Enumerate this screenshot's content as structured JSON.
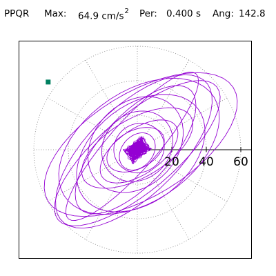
{
  "header": {
    "station": "PPQR",
    "max_label": "Max:",
    "max_value": "64.9 cm/s",
    "max_exponent": "2",
    "per_label": "Per:",
    "per_value": "0.400 s",
    "ang_label": "Ang:",
    "ang_value": "142.8"
  },
  "plot": {
    "radial_ticks": [
      "20",
      "40",
      "60"
    ],
    "trace_color": "#9400D3",
    "marker_color": "#008060",
    "axis_color": "#000000",
    "grid_color": "#808080"
  }
}
